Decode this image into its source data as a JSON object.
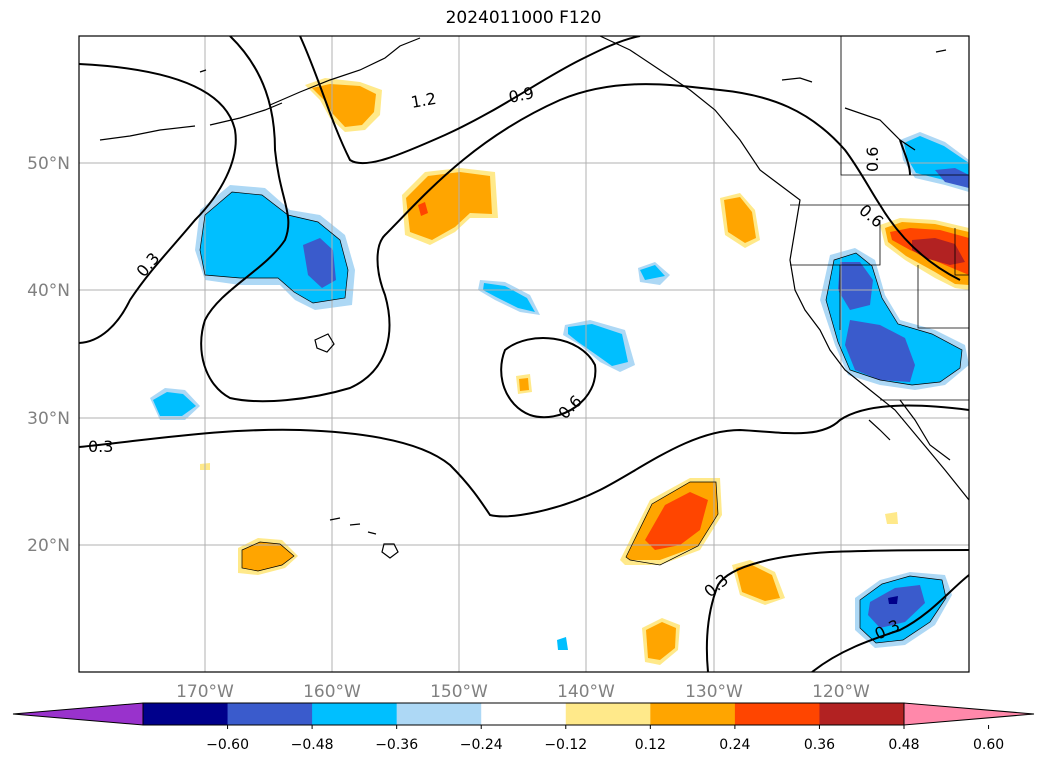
{
  "title": "2024011000 F120",
  "map": {
    "lat_labels": [
      "50°N",
      "40°N",
      "30°N",
      "20°N"
    ],
    "lon_labels": [
      "170°W",
      "160°W",
      "150°W",
      "140°W",
      "130°W",
      "120°W"
    ],
    "contour_labels": [
      "1.2",
      "0.9",
      "0.6",
      "0.6",
      "0.3",
      "0.3",
      "0.3",
      "0.3",
      "0.6"
    ]
  },
  "colorbar": {
    "tick_labels": [
      "−0.60",
      "−0.48",
      "−0.36",
      "−0.24",
      "−0.12",
      "0.12",
      "0.24",
      "0.36",
      "0.48",
      "0.60"
    ],
    "colors": [
      "#9932cc",
      "#00008b",
      "#3a5bcc",
      "#00bfff",
      "#add8f5",
      "#ffffff",
      "#ffe98a",
      "#ffa500",
      "#ff4500",
      "#b22222",
      "#ff88aa"
    ]
  }
}
